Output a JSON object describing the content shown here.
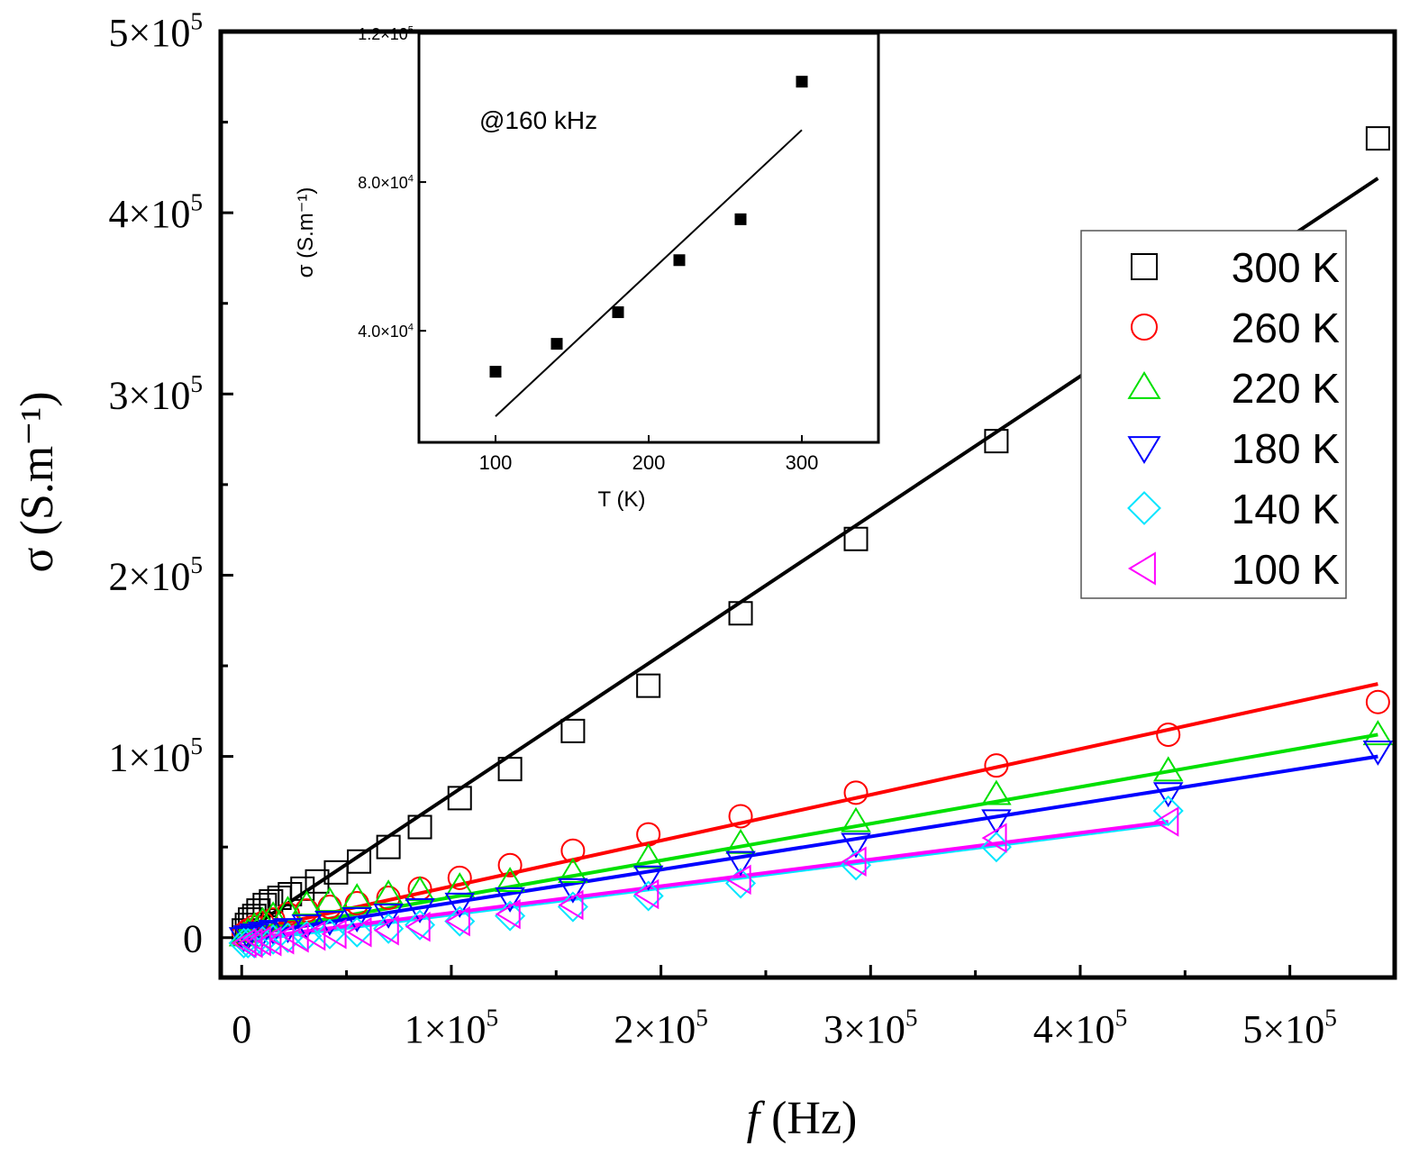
{
  "chart_data": [
    {
      "type": "scatter",
      "xlabel": "f (Hz)",
      "xlabel_italic_part": "f",
      "xlabel_rest": " (Hz)",
      "ylabel": "σ (S.m⁻¹)",
      "xlim": [
        -10000,
        550000
      ],
      "ylim": [
        -22000,
        500000
      ],
      "x_ticks": [
        {
          "value": 0,
          "label": "0"
        },
        {
          "value": 100000,
          "label": "1×10⁵"
        },
        {
          "value": 200000,
          "label": "2×10⁵"
        },
        {
          "value": 300000,
          "label": "3×10⁵"
        },
        {
          "value": 400000,
          "label": "4×10⁵"
        },
        {
          "value": 500000,
          "label": "5×10⁵"
        }
      ],
      "y_ticks": [
        {
          "value": 0,
          "label": "0"
        },
        {
          "value": 100000,
          "label": "1×10⁵"
        },
        {
          "value": 200000,
          "label": "2×10⁵"
        },
        {
          "value": 300000,
          "label": "3×10⁵"
        },
        {
          "value": 400000,
          "label": "4×10⁵"
        },
        {
          "value": 500000,
          "label": "5×10⁵"
        }
      ],
      "legend_position": "right",
      "series": [
        {
          "name": "300 K",
          "color": "#000000",
          "marker": "square",
          "x": [
            1000,
            2500,
            4000,
            6000,
            8000,
            11000,
            14000,
            18000,
            23000,
            29000,
            36000,
            45000,
            56000,
            70000,
            85000,
            104000,
            128000,
            158000,
            194000,
            238000,
            293000,
            360000,
            542000
          ],
          "y": [
            4000,
            7000,
            10000,
            12000,
            15000,
            18000,
            20000,
            22000,
            24000,
            27000,
            31000,
            36000,
            42000,
            50000,
            61000,
            77000,
            93000,
            114000,
            139000,
            179000,
            220000,
            274000,
            441000
          ],
          "fit": {
            "x": [
              0,
              542000
            ],
            "y": [
              2000,
              419000
            ]
          }
        },
        {
          "name": "260 K",
          "color": "#ff0000",
          "marker": "circle",
          "x": [
            1000,
            3000,
            6000,
            10000,
            15000,
            22000,
            31000,
            42000,
            55000,
            70000,
            85000,
            104000,
            128000,
            158000,
            194000,
            238000,
            293000,
            360000,
            442000,
            542000
          ],
          "y": [
            2000,
            4000,
            6000,
            8000,
            10000,
            13000,
            15000,
            17000,
            19000,
            22000,
            27000,
            33000,
            40000,
            48000,
            57000,
            67000,
            80000,
            95000,
            112000,
            130000
          ],
          "fit": {
            "x": [
              0,
              542000
            ],
            "y": [
              3000,
              140000
            ]
          }
        },
        {
          "name": "220 K",
          "color": "#00e000",
          "marker": "triangle-up",
          "x": [
            1000,
            3000,
            6000,
            10000,
            15000,
            22000,
            31000,
            42000,
            55000,
            70000,
            85000,
            104000,
            128000,
            158000,
            194000,
            238000,
            293000,
            360000,
            442000,
            542000
          ],
          "y": [
            1000,
            3000,
            6000,
            9000,
            12000,
            15000,
            18000,
            20000,
            22000,
            24000,
            26000,
            28000,
            31000,
            36000,
            44000,
            52000,
            64000,
            79000,
            92000,
            112000
          ],
          "fit": {
            "x": [
              0,
              542000
            ],
            "y": [
              2000,
              112000
            ]
          }
        },
        {
          "name": "180 K",
          "color": "#0000ff",
          "marker": "triangle-down",
          "x": [
            1000,
            3000,
            6000,
            10000,
            15000,
            22000,
            31000,
            42000,
            55000,
            70000,
            85000,
            104000,
            128000,
            158000,
            194000,
            238000,
            293000,
            360000,
            442000,
            542000
          ],
          "y": [
            0,
            1000,
            2000,
            3000,
            4000,
            5000,
            7000,
            9000,
            11000,
            13000,
            16000,
            19000,
            22000,
            27000,
            34000,
            42000,
            52000,
            65000,
            80000,
            103000
          ],
          "fit": {
            "x": [
              0,
              542000
            ],
            "y": [
              1000,
              100000
            ]
          }
        },
        {
          "name": "140 K",
          "color": "#00e5ff",
          "marker": "diamond",
          "x": [
            1000,
            3000,
            6000,
            10000,
            15000,
            22000,
            31000,
            42000,
            55000,
            70000,
            85000,
            104000,
            128000,
            158000,
            194000,
            238000,
            293000,
            360000,
            442000
          ],
          "y": [
            -3000,
            -3000,
            -3000,
            -2000,
            -1000,
            0,
            1000,
            2000,
            3000,
            5000,
            7000,
            9000,
            12000,
            17000,
            23000,
            30000,
            40000,
            50000,
            70000
          ],
          "fit": {
            "x": [
              0,
              442000
            ],
            "y": [
              -2000,
              63000
            ]
          }
        },
        {
          "name": "100 K",
          "color": "#ff00ff",
          "marker": "triangle-left",
          "x": [
            2000,
            5000,
            9000,
            14000,
            20000,
            27000,
            35000,
            45000,
            57000,
            70000,
            85000,
            104000,
            128000,
            158000,
            194000,
            238000,
            293000,
            360000,
            442000
          ],
          "y": [
            -3000,
            -3000,
            -2000,
            -2000,
            -1000,
            0,
            1000,
            2000,
            3000,
            4000,
            6000,
            9000,
            13000,
            18000,
            24000,
            32000,
            42000,
            55000,
            64000
          ],
          "fit": {
            "x": [
              0,
              442000
            ],
            "y": [
              -1000,
              64000
            ]
          }
        }
      ]
    },
    {
      "type": "scatter",
      "annotation": "@160 kHz",
      "xlabel": "T (K)",
      "ylabel": "σ (S.m⁻¹)",
      "xlim": [
        50,
        350
      ],
      "ylim": [
        10000,
        120000
      ],
      "x_ticks": [
        {
          "value": 100,
          "label": "100"
        },
        {
          "value": 200,
          "label": "200"
        },
        {
          "value": 300,
          "label": "300"
        }
      ],
      "y_ticks": [
        {
          "value": 40000,
          "label": "4.0×10⁴"
        },
        {
          "value": 80000,
          "label": "8.0×10⁴"
        },
        {
          "value": 120000,
          "label": "1.2×10⁵"
        }
      ],
      "series": [
        {
          "color": "#000000",
          "marker": "filled-square",
          "x": [
            100,
            140,
            180,
            220,
            260,
            300
          ],
          "y": [
            29000,
            36500,
            45000,
            59000,
            70000,
            107000
          ],
          "fit": {
            "x": [
              100,
              300
            ],
            "y": [
              17000,
              94000
            ]
          }
        }
      ]
    }
  ]
}
